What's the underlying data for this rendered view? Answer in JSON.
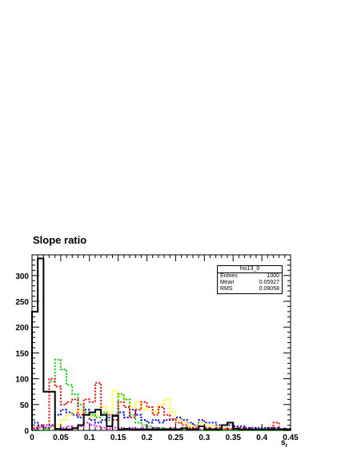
{
  "chart_data": {
    "type": "histogram",
    "title": "Slope ratio",
    "xlabel": "s",
    "xlabel_subscript": "r",
    "ylabel": "",
    "xlim": [
      0,
      0.45
    ],
    "ylim": [
      0,
      340
    ],
    "xticks": [
      0,
      0.05,
      0.1,
      0.15,
      0.2,
      0.25,
      0.3,
      0.35,
      0.4,
      0.45
    ],
    "xtick_labels": [
      "0",
      "0.05",
      "0.1",
      "0.15",
      "0.2",
      "0.25",
      "0.3",
      "0.35",
      "0.4",
      "0.45"
    ],
    "yticks": [
      0,
      50,
      100,
      150,
      200,
      250,
      300
    ],
    "ytick_labels": [
      "0",
      "50",
      "100",
      "150",
      "200",
      "250",
      "300"
    ],
    "bin_width": 0.01,
    "stats": {
      "name": "his13_0",
      "entries_label": "Entries",
      "entries": "1000",
      "mean_label": "Mean",
      "mean": "0.05927",
      "rms_label": "RMS",
      "rms": "0.09058"
    },
    "series": [
      {
        "color": "#000000",
        "style": "solid",
        "width": 2,
        "values": [
          230,
          333,
          75,
          75,
          3,
          2,
          2,
          4,
          10,
          30,
          35,
          40,
          30,
          8,
          28,
          2,
          3,
          2,
          2,
          2,
          2,
          2,
          2,
          2,
          2,
          2,
          4,
          2,
          2,
          8,
          2,
          2,
          2,
          10,
          15,
          3,
          2,
          2,
          2,
          2,
          2,
          2,
          2,
          2,
          2
        ]
      },
      {
        "color": "#ff0000",
        "style": "dotted",
        "width": 2,
        "values": [
          5,
          8,
          10,
          100,
          85,
          50,
          55,
          60,
          30,
          60,
          55,
          92,
          30,
          30,
          20,
          55,
          45,
          25,
          40,
          55,
          45,
          30,
          45,
          30,
          22,
          15,
          10,
          5,
          5,
          8,
          5,
          3,
          5,
          3,
          3,
          5,
          5,
          3,
          2,
          2,
          2,
          5,
          15,
          3,
          2
        ]
      },
      {
        "color": "#00cc00",
        "style": "dotted",
        "width": 2,
        "values": [
          0,
          0,
          2,
          95,
          137,
          118,
          88,
          70,
          50,
          35,
          30,
          25,
          35,
          20,
          30,
          70,
          60,
          30,
          15,
          10,
          8,
          5,
          5,
          3,
          3,
          2,
          2,
          2,
          2,
          0,
          0,
          0,
          0,
          0,
          0,
          0,
          0,
          0,
          0,
          0,
          0,
          0,
          0,
          0,
          0
        ]
      },
      {
        "color": "#ffff00",
        "style": "dotted",
        "width": 2,
        "values": [
          0,
          0,
          2,
          5,
          10,
          20,
          30,
          35,
          40,
          30,
          25,
          30,
          45,
          35,
          78,
          65,
          60,
          45,
          55,
          40,
          45,
          35,
          50,
          60,
          35,
          20,
          15,
          10,
          8,
          15,
          10,
          8,
          5,
          5,
          3,
          3,
          3,
          2,
          2,
          2,
          2,
          2,
          2,
          2,
          2
        ]
      },
      {
        "color": "#0000ff",
        "style": "dotted",
        "width": 2,
        "values": [
          15,
          10,
          5,
          10,
          30,
          40,
          35,
          30,
          25,
          40,
          20,
          15,
          20,
          25,
          30,
          35,
          25,
          40,
          30,
          20,
          15,
          20,
          15,
          20,
          20,
          25,
          20,
          15,
          10,
          20,
          15,
          15,
          10,
          10,
          10,
          8,
          8,
          5,
          5,
          5,
          5,
          5,
          5,
          3,
          3
        ]
      },
      {
        "color": "#ff00ff",
        "style": "dotted",
        "width": 2,
        "values": [
          3,
          5,
          5,
          8,
          10,
          5,
          8,
          5,
          8,
          15,
          10,
          8,
          5,
          3,
          5,
          5,
          3,
          5,
          3,
          5,
          3,
          5,
          3,
          3,
          5,
          3,
          3,
          2,
          3,
          2,
          2,
          2,
          2,
          2,
          2,
          3,
          2,
          2,
          2,
          2,
          2,
          3,
          2,
          2,
          2
        ]
      }
    ]
  }
}
